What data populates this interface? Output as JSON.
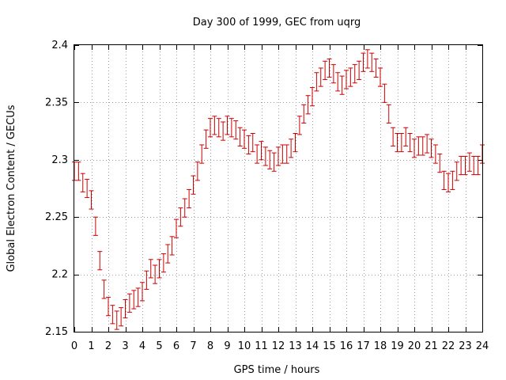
{
  "chart_data": {
    "type": "scatter",
    "title": "Day 300 of 1999, GEC from uqrg",
    "xlabel": "GPS time / hours",
    "ylabel": "Global Electron Content / GECUs",
    "xlim": [
      0,
      24
    ],
    "ylim": [
      2.15,
      2.4
    ],
    "xticks": [
      0,
      1,
      2,
      3,
      4,
      5,
      6,
      7,
      8,
      9,
      10,
      11,
      12,
      13,
      14,
      15,
      16,
      17,
      18,
      19,
      20,
      21,
      22,
      23,
      24
    ],
    "yticks": [
      "2.15",
      "2.2",
      "2.25",
      "2.3",
      "2.35",
      "2.4"
    ],
    "grid": true,
    "color": "#cc0000",
    "error": 0.008,
    "series": [
      {
        "name": "GEC",
        "x": [
          0,
          0.25,
          0.5,
          0.75,
          1,
          1.25,
          1.5,
          1.75,
          2,
          2.25,
          2.5,
          2.75,
          3,
          3.25,
          3.5,
          3.75,
          4,
          4.25,
          4.5,
          4.75,
          5,
          5.25,
          5.5,
          5.75,
          6,
          6.25,
          6.5,
          6.75,
          7,
          7.25,
          7.5,
          7.75,
          8,
          8.25,
          8.5,
          8.75,
          9,
          9.25,
          9.5,
          9.75,
          10,
          10.25,
          10.5,
          10.75,
          11,
          11.25,
          11.5,
          11.75,
          12,
          12.25,
          12.5,
          12.75,
          13,
          13.25,
          13.5,
          13.75,
          14,
          14.25,
          14.5,
          14.75,
          15,
          15.25,
          15.5,
          15.75,
          16,
          16.25,
          16.5,
          16.75,
          17,
          17.25,
          17.5,
          17.75,
          18,
          18.25,
          18.5,
          18.75,
          19,
          19.25,
          19.5,
          19.75,
          20,
          20.25,
          20.5,
          20.75,
          21,
          21.25,
          21.5,
          21.75,
          22,
          22.25,
          22.5,
          22.75,
          23,
          23.25,
          23.5,
          23.75,
          24
        ],
        "values": [
          2.29,
          2.29,
          2.28,
          2.275,
          2.265,
          2.242,
          2.212,
          2.187,
          2.172,
          2.165,
          2.16,
          2.163,
          2.17,
          2.175,
          2.178,
          2.18,
          2.185,
          2.195,
          2.205,
          2.2,
          2.205,
          2.21,
          2.218,
          2.225,
          2.24,
          2.25,
          2.258,
          2.266,
          2.278,
          2.29,
          2.305,
          2.318,
          2.328,
          2.33,
          2.328,
          2.325,
          2.33,
          2.328,
          2.326,
          2.32,
          2.318,
          2.313,
          2.315,
          2.305,
          2.308,
          2.303,
          2.3,
          2.298,
          2.303,
          2.305,
          2.305,
          2.31,
          2.315,
          2.33,
          2.34,
          2.348,
          2.355,
          2.368,
          2.372,
          2.378,
          2.38,
          2.375,
          2.368,
          2.365,
          2.37,
          2.372,
          2.375,
          2.378,
          2.385,
          2.388,
          2.385,
          2.38,
          2.372,
          2.358,
          2.34,
          2.32,
          2.315,
          2.315,
          2.32,
          2.315,
          2.31,
          2.312,
          2.312,
          2.314,
          2.31,
          2.305,
          2.297,
          2.282,
          2.28,
          2.282,
          2.29,
          2.295,
          2.295,
          2.298,
          2.295,
          2.295,
          2.305
        ]
      }
    ]
  }
}
